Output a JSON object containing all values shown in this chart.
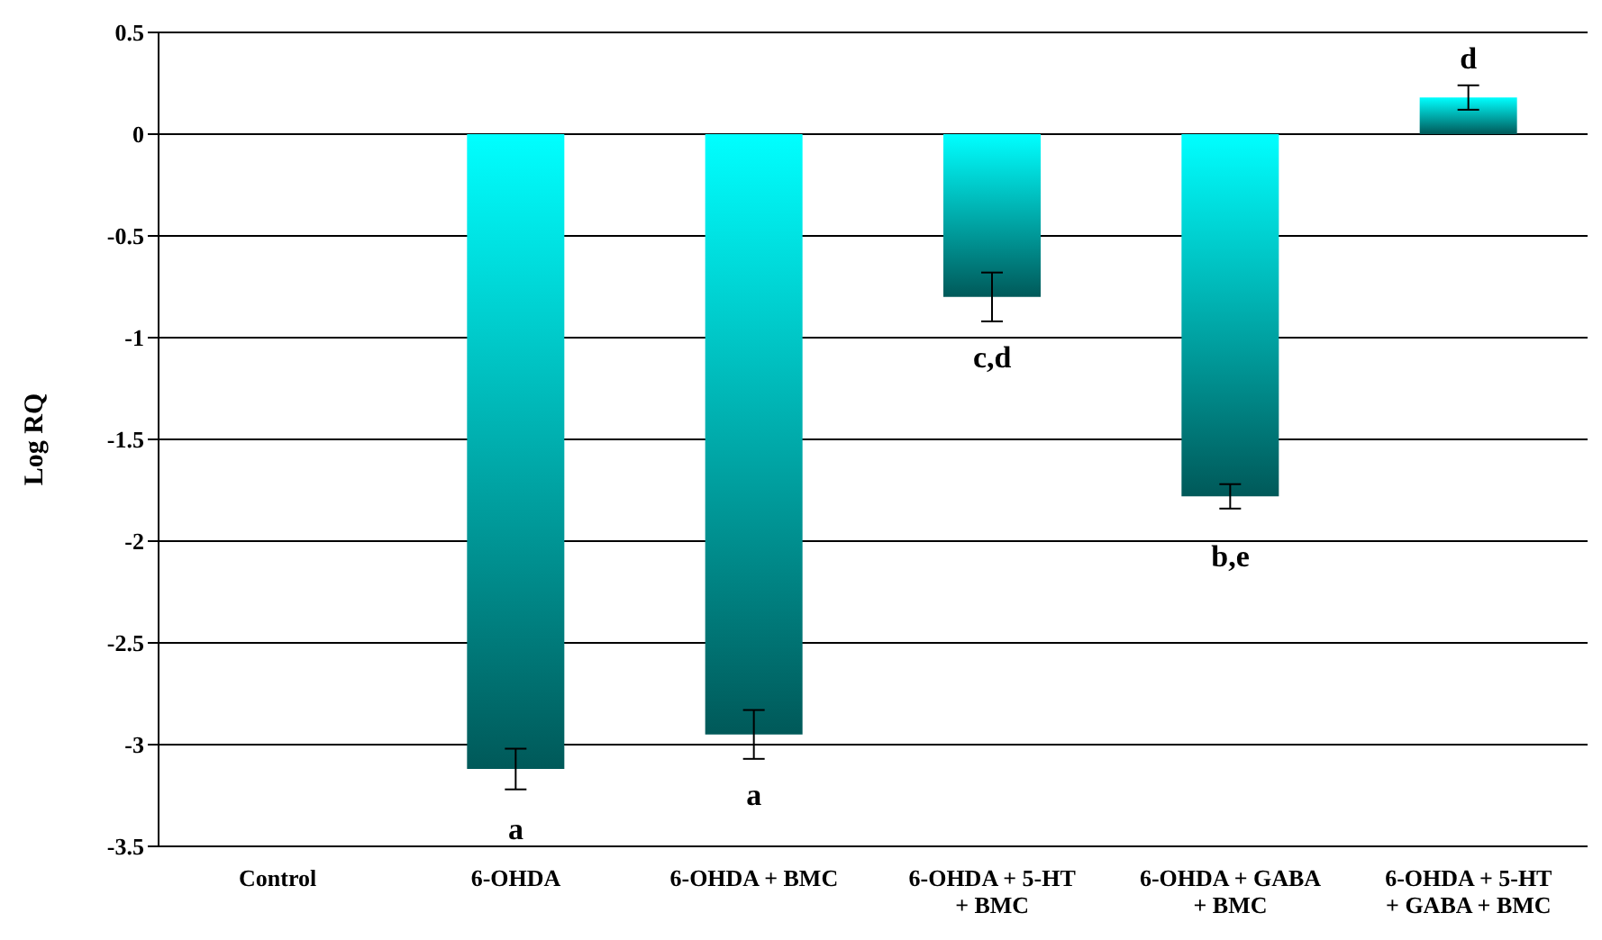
{
  "chart_data": {
    "type": "bar",
    "ylabel": "Log RQ",
    "categories": [
      "Control",
      "6-OHDA",
      "6-OHDA + BMC",
      "6-OHDA + 5-HT + BMC",
      "6-OHDA + GABA + BMC",
      "6-OHDA + 5-HT + GABA + BMC"
    ],
    "values": [
      0,
      -3.12,
      -2.95,
      -0.8,
      -1.78,
      0.18
    ],
    "errors": [
      null,
      0.1,
      0.12,
      0.12,
      0.06,
      0.06
    ],
    "color": "#00ffff",
    "ylim": [
      -3.5,
      0.5
    ],
    "yticks": [
      -3.5,
      -3,
      -2.5,
      -2,
      -1.5,
      -1,
      -0.5,
      0,
      0.5
    ],
    "grid": "y",
    "annotations": [
      {
        "text": "a",
        "x": "6-OHDA",
        "y": -3.12
      },
      {
        "text": "a",
        "x": "6-OHDA + BMC",
        "y": -2.95
      },
      {
        "text": "c,d",
        "x": "6-OHDA + 5-HT + BMC",
        "y": -0.8
      },
      {
        "text": "b,e",
        "x": "6-OHDA + GABA + BMC",
        "y": -1.78
      },
      {
        "text": "d",
        "x": "6-OHDA + 5-HT + GABA + BMC",
        "y": 0.18
      }
    ]
  }
}
